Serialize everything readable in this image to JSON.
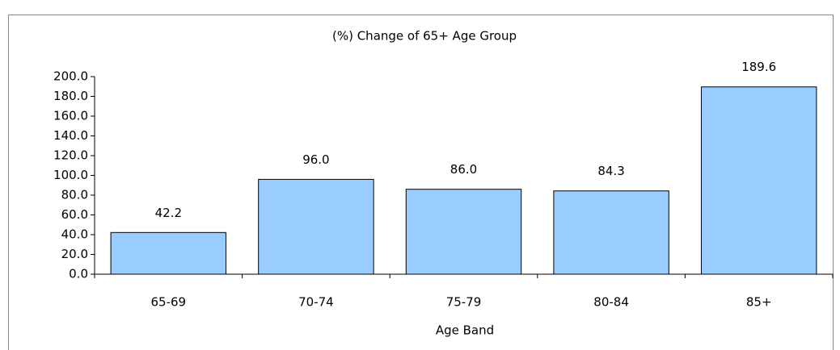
{
  "chart_data": {
    "type": "bar",
    "title": "(%) Change of 65+ Age Group",
    "x_label": "Age Band",
    "categories": [
      "65-69",
      "70-74",
      "75-79",
      "80-84",
      "85+"
    ],
    "values": [
      42.2,
      96.0,
      86.0,
      84.3,
      189.6
    ],
    "value_labels": [
      "42.2",
      "96.0",
      "86.0",
      "84.3",
      "189.6"
    ],
    "color": "#99ccff",
    "ylim": [
      0,
      200
    ],
    "yticks": [
      {
        "value": 0,
        "label": "0.0"
      },
      {
        "value": 20,
        "label": "20.0"
      },
      {
        "value": 40,
        "label": "40.0"
      },
      {
        "value": 60,
        "label": "60.0"
      },
      {
        "value": 80,
        "label": "80.0"
      },
      {
        "value": 100,
        "label": "100.0"
      },
      {
        "value": 120,
        "label": "120.0"
      },
      {
        "value": 140,
        "label": "140.0"
      },
      {
        "value": 160,
        "label": "160.0"
      },
      {
        "value": 180,
        "label": "180.0"
      },
      {
        "value": 200,
        "label": "200.0"
      }
    ],
    "grid": false
  }
}
